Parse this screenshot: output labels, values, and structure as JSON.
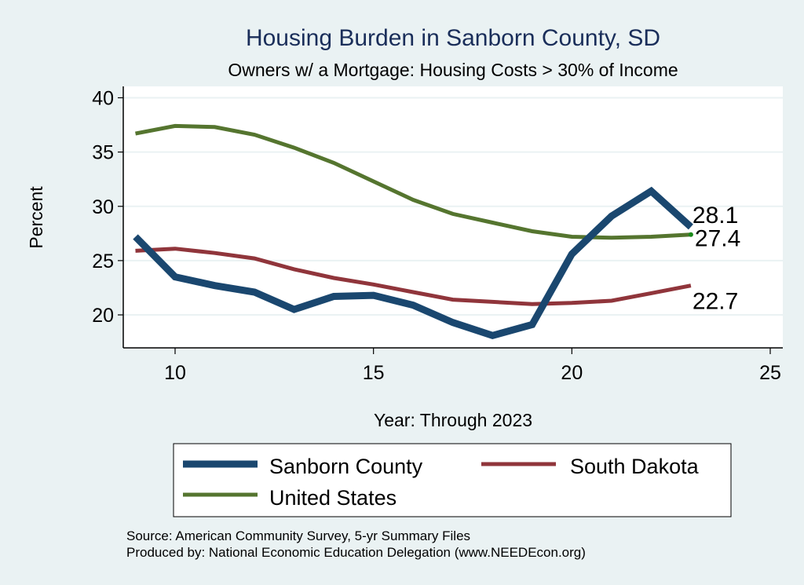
{
  "chart_data": {
    "type": "line",
    "title": "Housing Burden in Sanborn County, SD",
    "subtitle": "Owners w/ a Mortgage: Housing Costs > 30% of Income",
    "xlabel": "Year: Through 2023",
    "ylabel": "Percent",
    "xlim": [
      8.7,
      25.2
    ],
    "ylim": [
      17.0,
      41.0
    ],
    "xticks": [
      10,
      15,
      20,
      25
    ],
    "yticks": [
      20,
      25,
      30,
      35,
      40
    ],
    "grid": true,
    "x": [
      9,
      10,
      11,
      12,
      13,
      14,
      15,
      16,
      17,
      18,
      19,
      20,
      21,
      22,
      23
    ],
    "series": [
      {
        "name": "Sanborn County",
        "color": "#1a476f",
        "values": [
          27.2,
          23.5,
          22.7,
          22.1,
          20.5,
          21.7,
          21.8,
          20.9,
          19.3,
          18.1,
          19.1,
          25.6,
          29.1,
          31.4,
          28.1
        ],
        "end_label": "28.1"
      },
      {
        "name": "South Dakota",
        "color": "#90353b",
        "values": [
          25.9,
          26.1,
          25.7,
          25.2,
          24.2,
          23.4,
          22.8,
          22.1,
          21.4,
          21.2,
          21.0,
          21.1,
          21.3,
          22.0,
          22.7
        ],
        "end_label": "22.7"
      },
      {
        "name": "United States",
        "color": "#55752f",
        "values": [
          36.7,
          37.4,
          37.3,
          36.6,
          35.4,
          34.0,
          32.3,
          30.6,
          29.3,
          28.5,
          27.7,
          27.2,
          27.1,
          27.2,
          27.4
        ],
        "end_label": "27.4"
      }
    ],
    "legend": {
      "placement": "bottom",
      "entries": [
        "Sanborn County",
        "South Dakota",
        "United States"
      ]
    },
    "notes": [
      "Source: American Community Survey, 5-yr Summary Files",
      "Produced by: National Economic Education Delegation (www.NEEDEcon.org)"
    ]
  },
  "colors": {
    "background": "#eaf2f3",
    "plot_background": "#ffffff",
    "gridline": "#eaf2f3",
    "title": "#1a2e5a"
  }
}
